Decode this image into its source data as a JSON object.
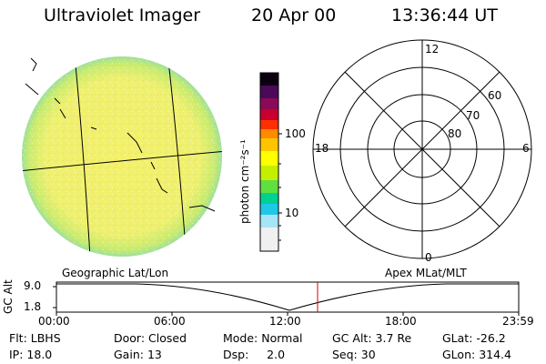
{
  "header": {
    "title": "Ultraviolet Imager",
    "date": "20 Apr 00",
    "time": "13:36:44 UT"
  },
  "colorbar": {
    "unit_label": "photon cm⁻²s⁻¹",
    "tick_labels": [
      "100",
      "10"
    ],
    "colors": [
      "#000000",
      "#2a0a4a",
      "#6a0a5a",
      "#a8004c",
      "#d8001c",
      "#ff3a00",
      "#ff8a00",
      "#ffc000",
      "#ffff00",
      "#b8f000",
      "#48e040",
      "#00d0a0",
      "#00c8e0",
      "#9ae0ff",
      "#f4f4f4"
    ]
  },
  "polar_plot": {
    "lat_labels": [
      "60",
      "70",
      "80"
    ],
    "mlt_labels": [
      "12",
      "18",
      "6",
      "0"
    ]
  },
  "timeline": {
    "left_caption": "Geographic Lat/Lon",
    "right_caption": "Apex MLat/MLT",
    "y_axis_label": "GC Alt",
    "y_ticks": [
      "9.0",
      "1.8"
    ],
    "x_ticks": [
      "00:00",
      "06:00",
      "12:00",
      "18:00",
      "23:59"
    ]
  },
  "status": {
    "row1": [
      {
        "label": "Flt:",
        "value": "LBHS"
      },
      {
        "label": "Door:",
        "value": "Closed"
      },
      {
        "label": "Mode:",
        "value": "Normal"
      },
      {
        "label": "GC Alt:",
        "value": "3.7 Re"
      },
      {
        "label": "GLat:",
        "value": "-26.2"
      }
    ],
    "row2": [
      {
        "label": "IP:",
        "value": "18.0"
      },
      {
        "label": "Gain:",
        "value": "13"
      },
      {
        "label": "Dsp:",
        "value": "2.0"
      },
      {
        "label": "Seq:",
        "value": "30"
      },
      {
        "label": "GLon:",
        "value": "314.4"
      }
    ]
  }
}
